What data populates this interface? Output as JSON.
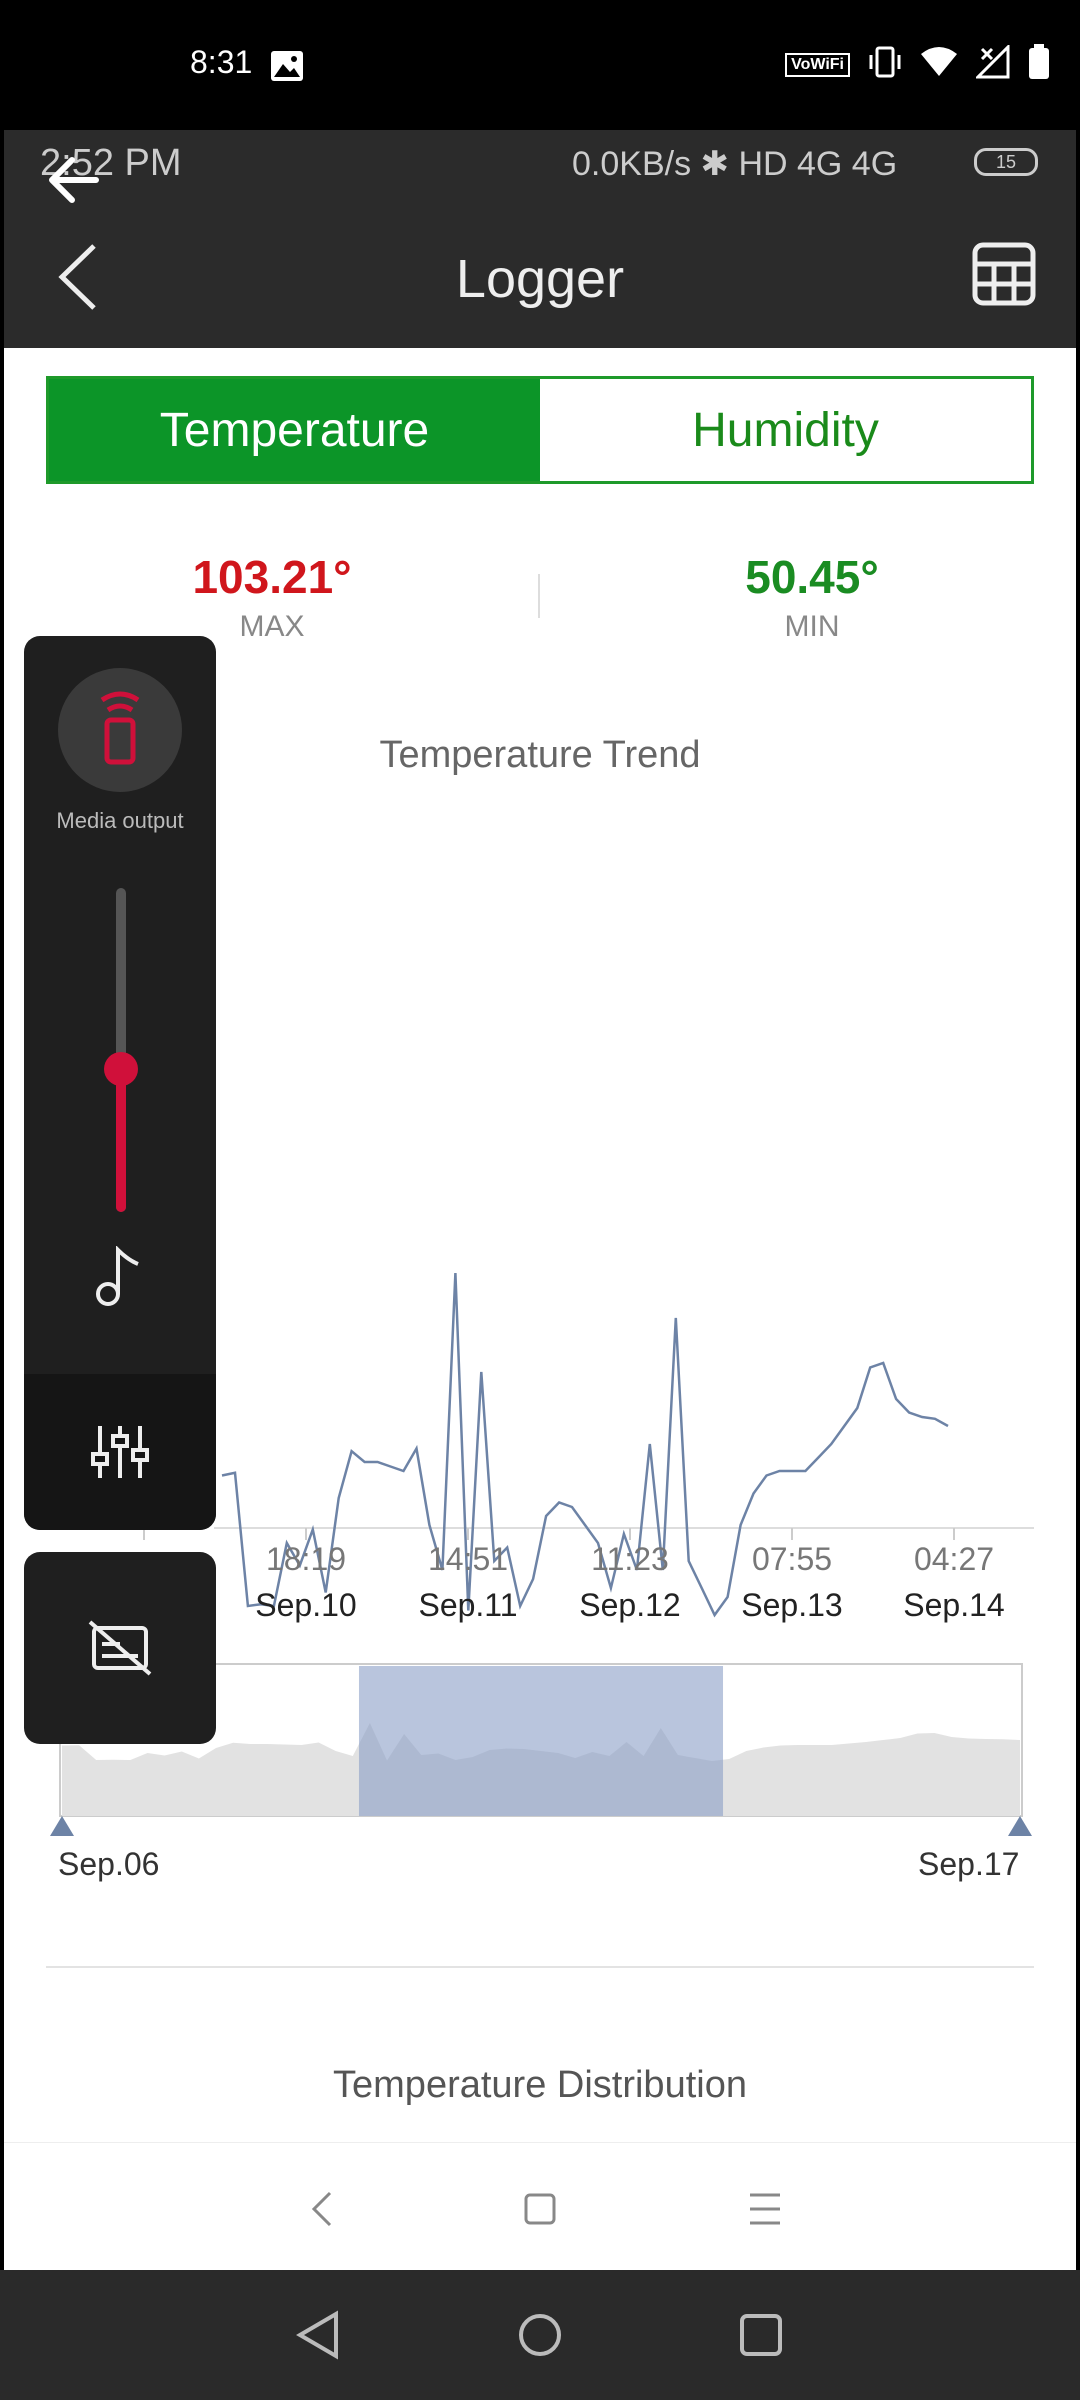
{
  "outer_status": {
    "time": "8:31",
    "wifi_badge": "VoWiFi"
  },
  "inner_status": {
    "time": "2:52 PM",
    "stats": "0.0KB/s ✱ HD 4G 4G",
    "battery": "15"
  },
  "header": {
    "title": "Logger"
  },
  "tabs": [
    {
      "label": "Temperature",
      "active": true
    },
    {
      "label": "Humidity",
      "active": false
    }
  ],
  "stats": {
    "max_value": "103.21°",
    "max_label": "MAX",
    "min_value": "50.45°",
    "min_label": "MIN"
  },
  "media_panel": {
    "output_label": "Media output",
    "volume_level": 0.44
  },
  "chart_data": {
    "type": "line",
    "title": "Temperature Trend",
    "x_ticks": [
      {
        "time": "",
        "date": ""
      },
      {
        "time": "18:19",
        "date": "Sep.10"
      },
      {
        "time": "14:51",
        "date": "Sep.11"
      },
      {
        "time": "11:23",
        "date": "Sep.12"
      },
      {
        "time": "07:55",
        "date": "Sep.13"
      },
      {
        "time": "04:27",
        "date": "Sep.14"
      }
    ],
    "ylim": [
      50,
      110
    ],
    "series": [
      {
        "values": [
          80.5,
          80.8,
          66.0,
          66.2,
          66.0,
          73.0,
          70.5,
          74.5,
          67.5,
          78.0,
          83.2,
          82.0,
          82.0,
          81.5,
          81.0,
          83.5,
          75.0,
          70.0,
          103.0,
          65.5,
          92.0,
          71.0,
          72.5,
          66.0,
          69.0,
          76.0,
          77.5,
          77.0,
          75.0,
          73.0,
          68.0,
          74.0,
          70.0,
          84.0,
          70.0,
          98.0,
          71.0,
          68.0,
          65.0,
          67.0,
          75.0,
          78.5,
          80.5,
          81.0,
          81.0,
          81.0,
          82.5,
          84.0,
          86.0,
          88.0,
          92.5,
          93.0,
          89.0,
          87.5,
          87.0,
          86.8,
          86.0
        ]
      }
    ],
    "grid": false,
    "range": {
      "start_label": "Sep.06",
      "end_label": "Sep.17",
      "window_start": 0.31,
      "window_end": 0.69
    }
  },
  "distribution": {
    "title": "Temperature Distribution"
  },
  "colors": {
    "accent_green": "#0c9528",
    "max_red": "#d0161c",
    "line": "#6d83a6",
    "volume": "#d0103a"
  }
}
